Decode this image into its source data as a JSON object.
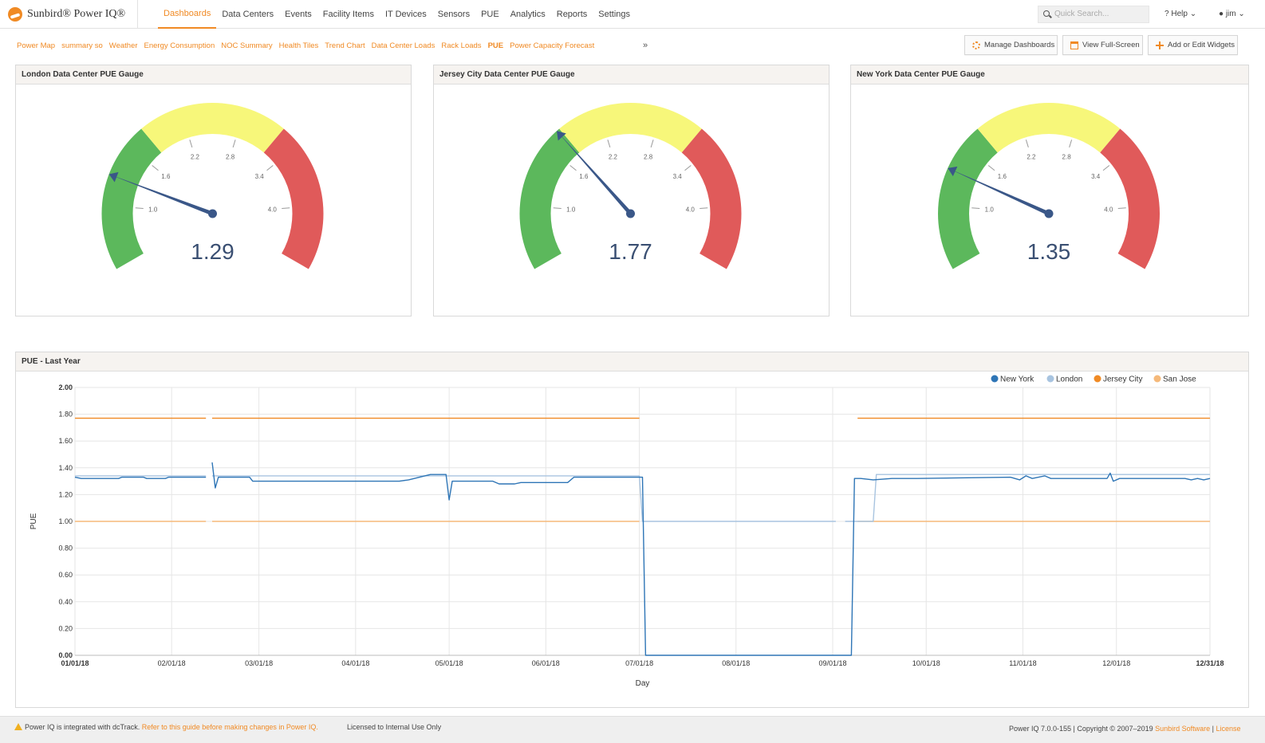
{
  "app": {
    "brand": "Sunbird® Power IQ®",
    "nav": [
      "Dashboards",
      "Data Centers",
      "Events",
      "Facility Items",
      "IT Devices",
      "Sensors",
      "PUE",
      "Analytics",
      "Reports",
      "Settings"
    ],
    "active_nav": "Dashboards",
    "search_placeholder": "Quick Search...",
    "help_label": "Help ⌄",
    "user_label": "jim ⌄"
  },
  "dashboard_tabs": [
    "Power Map",
    "summary so",
    "Weather",
    "Energy Consumption",
    "NOC Summary",
    "Health Tiles",
    "Trend Chart",
    "Data Center Loads",
    "Rack Loads",
    "PUE",
    "Power Capacity Forecast"
  ],
  "active_tab": "PUE",
  "more_tabs": "»",
  "toolbar": {
    "manage": "Manage Dashboards",
    "fullscreen": "View Full-Screen",
    "add": "Add or Edit Widgets"
  },
  "gauges": [
    {
      "title": "London Data Center PUE Gauge",
      "value": "1.29",
      "needle": 1.29,
      "ticks": [
        "1.0",
        "1.6",
        "2.2",
        "2.8",
        "3.4",
        "4.0"
      ]
    },
    {
      "title": "Jersey City Data Center PUE Gauge",
      "value": "1.77",
      "needle": 1.77,
      "ticks": [
        "1.0",
        "1.6",
        "2.2",
        "2.8",
        "3.4",
        "4.0"
      ]
    },
    {
      "title": "New York Data Center PUE Gauge",
      "value": "1.35",
      "needle": 1.35,
      "ticks": [
        "1.0",
        "1.6",
        "2.2",
        "2.8",
        "3.4",
        "4.0"
      ]
    }
  ],
  "gauge_colors": {
    "green": "#5cb85c",
    "yellow": "#f7f77a",
    "red": "#e05a5a",
    "needle": "#3a5788"
  },
  "chart_data": {
    "type": "line",
    "title": "PUE - Last Year",
    "xlabel": "Day",
    "ylabel": "PUE",
    "ylim": [
      0,
      2
    ],
    "yticks": [
      "0.00",
      "0.20",
      "0.40",
      "0.60",
      "0.80",
      "1.00",
      "1.20",
      "1.40",
      "1.60",
      "1.80",
      "2.00"
    ],
    "xticks": [
      {
        "label": "01/01/18",
        "day": 0,
        "bold": true
      },
      {
        "label": "02/01/18",
        "day": 31
      },
      {
        "label": "03/01/18",
        "day": 59
      },
      {
        "label": "04/01/18",
        "day": 90
      },
      {
        "label": "05/01/18",
        "day": 120
      },
      {
        "label": "06/01/18",
        "day": 151
      },
      {
        "label": "07/01/18",
        "day": 181
      },
      {
        "label": "08/01/18",
        "day": 212
      },
      {
        "label": "09/01/18",
        "day": 243
      },
      {
        "label": "10/01/18",
        "day": 273
      },
      {
        "label": "11/01/18",
        "day": 304
      },
      {
        "label": "12/01/18",
        "day": 334
      },
      {
        "label": "12/31/18",
        "day": 364,
        "bold": true
      }
    ],
    "legend_position": "top-right",
    "series": [
      {
        "name": "New York",
        "color": "#2e75b6",
        "segments": [
          [
            [
              0,
              1.33
            ],
            [
              2,
              1.32
            ],
            [
              14,
              1.32
            ],
            [
              15,
              1.33
            ],
            [
              22,
              1.33
            ],
            [
              23,
              1.32
            ],
            [
              29,
              1.32
            ],
            [
              30,
              1.33
            ],
            [
              42,
              1.33
            ]
          ],
          [
            [
              44,
              1.44
            ],
            [
              45,
              1.25
            ],
            [
              46,
              1.33
            ],
            [
              56,
              1.33
            ],
            [
              57,
              1.3
            ],
            [
              104,
              1.3
            ],
            [
              107,
              1.31
            ],
            [
              114,
              1.35
            ],
            [
              119,
              1.35
            ],
            [
              120,
              1.16
            ],
            [
              121,
              1.3
            ],
            [
              134,
              1.3
            ],
            [
              136,
              1.28
            ],
            [
              141,
              1.28
            ],
            [
              143,
              1.29
            ],
            [
              158,
              1.29
            ],
            [
              160,
              1.33
            ],
            [
              181,
              1.33
            ],
            [
              182,
              1.33
            ],
            [
              183,
              0.0
            ],
            [
              249,
              0.0
            ],
            [
              250,
              1.32
            ],
            [
              252,
              1.32
            ],
            [
              256,
              1.31
            ],
            [
              262,
              1.32
            ],
            [
              270,
              1.32
            ],
            [
              300,
              1.33
            ],
            [
              303,
              1.31
            ],
            [
              305,
              1.34
            ],
            [
              307,
              1.32
            ],
            [
              311,
              1.34
            ],
            [
              313,
              1.32
            ],
            [
              331,
              1.32
            ],
            [
              332,
              1.36
            ],
            [
              333,
              1.3
            ],
            [
              335,
              1.32
            ],
            [
              356,
              1.32
            ],
            [
              358,
              1.31
            ],
            [
              360,
              1.32
            ],
            [
              362,
              1.31
            ],
            [
              364,
              1.32
            ]
          ]
        ]
      },
      {
        "name": "London",
        "color": "#a8c4e0",
        "segments": [
          [
            [
              0,
              1.34
            ],
            [
              42,
              1.34
            ]
          ],
          [
            [
              44,
              1.34
            ],
            [
              181,
              1.34
            ],
            [
              182,
              1.0
            ],
            [
              244,
              1.0
            ]
          ],
          [
            [
              247,
              1.0
            ],
            [
              256,
              1.0
            ],
            [
              257,
              1.35
            ],
            [
              364,
              1.35
            ]
          ]
        ]
      },
      {
        "name": "Jersey City",
        "color": "#f08a24",
        "segments": [
          [
            [
              0,
              1.77
            ],
            [
              42,
              1.77
            ]
          ],
          [
            [
              44,
              1.77
            ],
            [
              181,
              1.77
            ]
          ],
          [
            [
              251,
              1.77
            ],
            [
              364,
              1.77
            ]
          ]
        ]
      },
      {
        "name": "San Jose",
        "color": "#f5b97a",
        "segments": [
          [
            [
              0,
              1.0
            ],
            [
              42,
              1.0
            ]
          ],
          [
            [
              44,
              1.0
            ],
            [
              181,
              1.0
            ]
          ],
          [
            [
              251,
              1.0
            ],
            [
              364,
              1.0
            ]
          ]
        ]
      }
    ]
  },
  "footer": {
    "integration": "Power IQ is integrated with dcTrack.",
    "guide_link": "Refer to this guide before making changes in Power IQ.",
    "license": "Licensed to Internal Use Only",
    "version": "Power IQ 7.0.0-155 | Copyright © 2007–2019",
    "company_link": "Sunbird Software",
    "separator": "|",
    "license_link": "License"
  }
}
